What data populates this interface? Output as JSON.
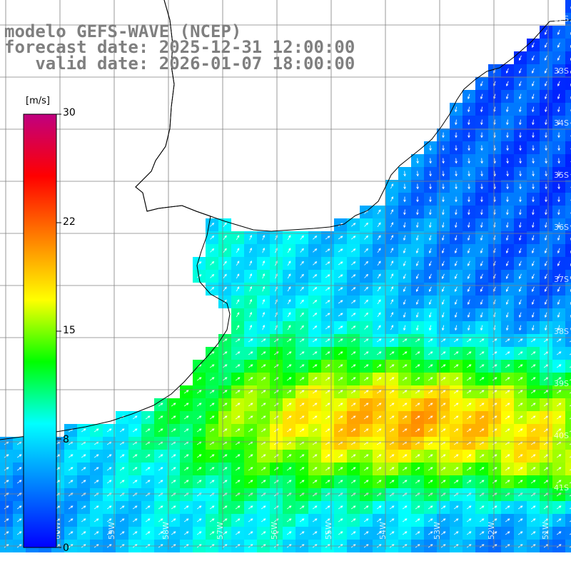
{
  "title": {
    "line1": "modelo GEFS-WAVE (NCEP)",
    "line2": "forecast date: 2025-12-31 12:00:00",
    "line3": "   valid date: 2026-01-07 18:00:00"
  },
  "colorbar": {
    "unit": "[m/s]",
    "min": 0,
    "max": 30,
    "ticks": [
      "30",
      "22",
      "15",
      "8",
      "0"
    ],
    "stops": [
      "#0000ff",
      "#0080ff",
      "#00ffff",
      "#00ff00",
      "#ffff00",
      "#ff8000",
      "#ff0000",
      "#c00080"
    ]
  },
  "colors": {
    "land": "#ffffff",
    "coastline": "#000000",
    "grid": "#808080",
    "arrows": "#ffffff",
    "title_text": "#7f7f7f"
  },
  "axis_labels": {
    "lat": [
      "32S",
      "33S",
      "34S",
      "35S",
      "36S",
      "37S",
      "38S",
      "39S",
      "40S",
      "41S"
    ],
    "lon": [
      "60W",
      "59W",
      "58W",
      "57W",
      "56W",
      "55W",
      "54W",
      "53W",
      "52W",
      "51W"
    ]
  }
}
